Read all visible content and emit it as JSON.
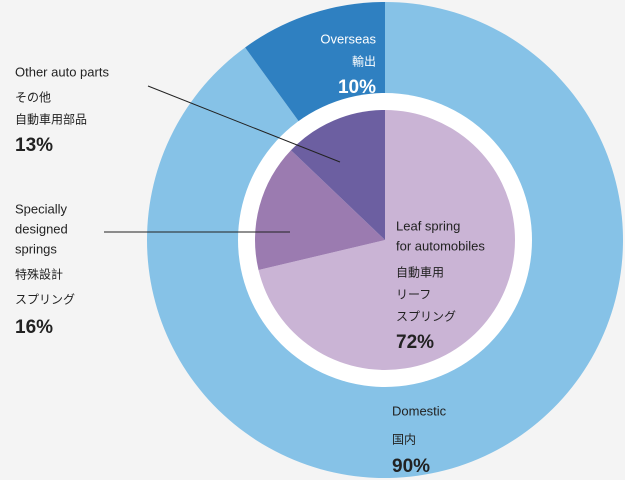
{
  "chart_data": [
    {
      "type": "donut",
      "categories": [
        [
          "Domestic"
        ],
        [
          "Overseas"
        ]
      ],
      "categories_ja": [
        [
          "国内"
        ],
        [
          "輸出"
        ]
      ],
      "values": [
        90,
        10
      ],
      "value_labels": [
        "90%",
        "10%"
      ],
      "colors": [
        "#86c2e7",
        "#2f80c1"
      ]
    },
    {
      "type": "pie",
      "categories": [
        [
          "Leaf spring",
          "for automobiles"
        ],
        [
          "Specially",
          "designed",
          "springs"
        ],
        [
          "Other auto parts"
        ]
      ],
      "categories_ja": [
        [
          "自動車用",
          "リーフ",
          "スプリング"
        ],
        [
          "特殊設計",
          "スプリング"
        ],
        [
          "その他",
          "自動車用部品"
        ]
      ],
      "values": [
        72,
        16,
        13
      ],
      "value_labels": [
        "72%",
        "16%",
        "13%"
      ],
      "colors": [
        "#cab4d5",
        "#9b7bb0",
        "#6c5fa1"
      ]
    }
  ]
}
